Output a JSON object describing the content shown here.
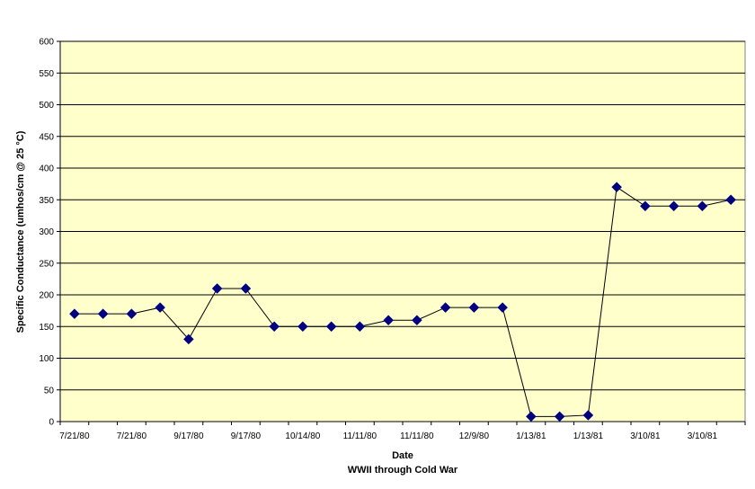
{
  "chart_data": {
    "type": "line",
    "title": "",
    "xlabel": "Date",
    "subtitle": "WWII through Cold War",
    "ylabel": "Specific Conductance (umhos/cm @ 25 °C)",
    "ylim": [
      0,
      600
    ],
    "ytick_step": 50,
    "grid": true,
    "legend": "none",
    "plot_bg_color": "#FFFFCC",
    "line_color": "#000000",
    "marker_color": "#000080",
    "marker_shape": "diamond",
    "xtick_labels": [
      "7/21/80",
      "7/21/80",
      "9/17/80",
      "9/17/80",
      "10/14/80",
      "11/11/80",
      "11/11/80",
      "12/9/80",
      "1/13/81",
      "1/13/81",
      "3/10/81",
      "3/10/81"
    ],
    "series": [
      {
        "values": [
          170,
          170,
          170,
          180,
          130,
          210,
          210,
          150,
          150,
          150,
          150,
          160,
          160,
          180,
          180,
          180,
          8,
          8,
          10,
          370,
          340,
          340,
          340,
          350
        ]
      }
    ]
  }
}
